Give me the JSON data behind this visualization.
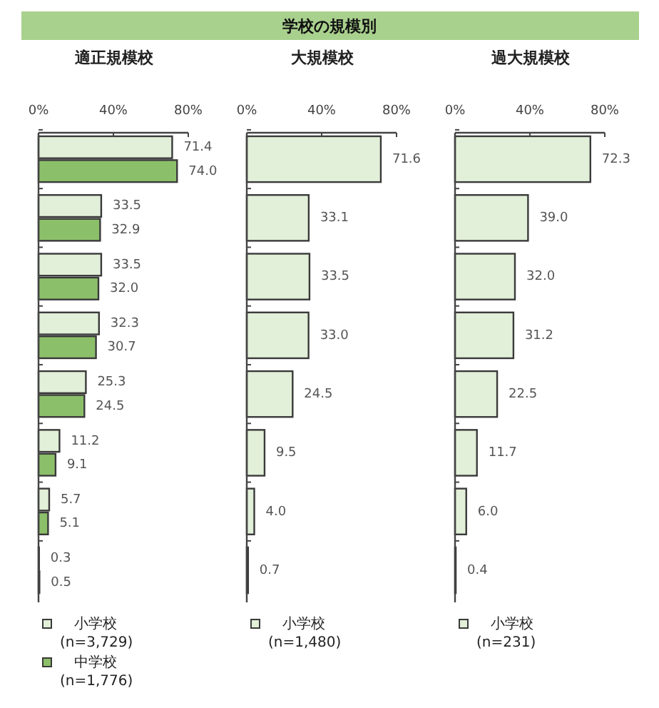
{
  "chart_data": [
    {
      "type": "other",
      "title": "学校の規模別"
    },
    {
      "type": "bar",
      "orientation": "horizontal",
      "title": "適正規模校",
      "categories": [
        null,
        null,
        null,
        null,
        null,
        null,
        null,
        null
      ],
      "series": [
        {
          "name": "小学校 (n=3,729)",
          "color": "#e2efd9",
          "values": [
            71.4,
            33.5,
            33.5,
            32.3,
            25.3,
            11.2,
            5.7,
            0.3
          ],
          "value_labels": [
            "71.4",
            "33.5",
            "33.5",
            "32.3",
            "25.3",
            "11.2",
            "5.7",
            "0.3"
          ]
        },
        {
          "name": "中学校 (n=1,776)",
          "color": "#8cbf6a",
          "values": [
            74.0,
            32.9,
            32.0,
            30.7,
            24.5,
            9.1,
            5.1,
            0.5
          ],
          "value_labels": [
            "74.0",
            "32.9",
            "32.0",
            "30.7",
            "24.5",
            "9.1",
            "5.1",
            "0.5"
          ]
        }
      ],
      "xlim": [
        0,
        80
      ],
      "xticks": [
        {
          "value": 0,
          "label": "0%"
        },
        {
          "value": 40,
          "label": "40%"
        },
        {
          "value": 80,
          "label": "80%"
        }
      ],
      "tick_labels": "x",
      "legend": "bottom"
    },
    {
      "type": "bar",
      "orientation": "horizontal",
      "title": "大規模校",
      "categories": [
        null,
        null,
        null,
        null,
        null,
        null,
        null,
        null
      ],
      "series": [
        {
          "name": "小学校 (n=1,480)",
          "color": "#e2efd9",
          "values": [
            71.6,
            33.1,
            33.5,
            33.0,
            24.5,
            9.5,
            4.0,
            0.7
          ],
          "value_labels": [
            "71.6",
            "33.1",
            "33.5",
            "33.0",
            "24.5",
            "9.5",
            "4.0",
            "0.7"
          ]
        }
      ],
      "xlim": [
        0,
        80
      ],
      "xticks": [
        {
          "value": 0,
          "label": "0%"
        },
        {
          "value": 40,
          "label": "40%"
        },
        {
          "value": 80,
          "label": "80%"
        }
      ],
      "tick_labels": "x",
      "legend": "bottom"
    },
    {
      "type": "bar",
      "orientation": "horizontal",
      "title": "過大規模校",
      "categories": [
        null,
        null,
        null,
        null,
        null,
        null,
        null,
        null
      ],
      "series": [
        {
          "name": "小学校 (n=231)",
          "color": "#e2efd9",
          "values": [
            72.3,
            39.0,
            32.0,
            31.2,
            22.5,
            11.7,
            6.0,
            0.4
          ],
          "value_labels": [
            "72.3",
            "39.0",
            "32.0",
            "31.2",
            "22.5",
            "11.7",
            "6.0",
            "0.4"
          ]
        }
      ],
      "xlim": [
        0,
        80
      ],
      "xticks": [
        {
          "value": 0,
          "label": "0%"
        },
        {
          "value": 40,
          "label": "40%"
        },
        {
          "value": 80,
          "label": "80%"
        }
      ],
      "tick_labels": "x",
      "legend": "bottom"
    }
  ]
}
